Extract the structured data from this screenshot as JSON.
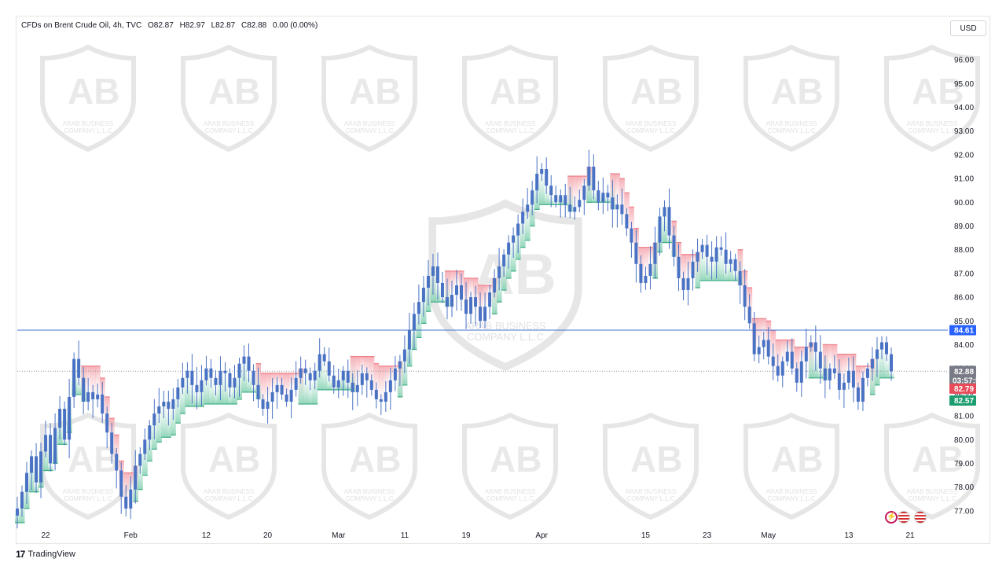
{
  "header": {
    "symbol": "CFDs on Brent Crude Oil, 4h, TVC",
    "open": "O82.87",
    "high": "H82.97",
    "low": "L82.87",
    "close": "C82.88",
    "change": "0.00 (0.00%)"
  },
  "currency_label": "USD",
  "footer": {
    "brand": "TradingView",
    "logo_glyph": "17"
  },
  "watermark": {
    "line1": "ARAB BUSINESS",
    "line2": "COMPANY L.L.C"
  },
  "colors": {
    "candle_up": "#4a72c4",
    "candle_down": "#4a72c4",
    "horizontal_line": "#3d6fd1",
    "stop_red": "#f0808a",
    "stop_green": "#3fae86",
    "last_price_bg": "#787b86",
    "tag_red": "#e84b5a",
    "tag_green": "#1e9e70",
    "tag_blue": "#2962ff"
  },
  "price_tags": {
    "line_level": "84.61",
    "last_price": "82.88",
    "countdown": "03:57:51",
    "upper_stop": "82.79",
    "lower_stop": "82.57"
  },
  "chart_data": {
    "type": "candlestick",
    "title": "CFDs on Brent Crude Oil, 4h, TVC",
    "ylim": [
      76.4,
      96.6
    ],
    "y_ticks": [
      "96.00",
      "95.00",
      "94.00",
      "93.00",
      "92.00",
      "91.00",
      "90.00",
      "89.00",
      "88.00",
      "87.00",
      "86.00",
      "85.00",
      "84.00",
      "83.00",
      "82.00",
      "81.00",
      "80.00",
      "79.00",
      "78.00",
      "77.00"
    ],
    "x_labels": [
      {
        "label": "22",
        "i": 6
      },
      {
        "label": "Feb",
        "i": 24
      },
      {
        "label": "12",
        "i": 40
      },
      {
        "label": "20",
        "i": 53
      },
      {
        "label": "Mar",
        "i": 68
      },
      {
        "label": "11",
        "i": 82
      },
      {
        "label": "19",
        "i": 95
      },
      {
        "label": "Apr",
        "i": 111
      },
      {
        "label": "15",
        "i": 133
      },
      {
        "label": "23",
        "i": 146
      },
      {
        "label": "May",
        "i": 159
      },
      {
        "label": "13",
        "i": 176
      },
      {
        "label": "21",
        "i": 189
      }
    ],
    "horizontal_line": 84.61,
    "last_price": 82.88,
    "close_path": [
      77.1,
      77.8,
      78.6,
      79.3,
      78.2,
      79.5,
      80.2,
      79.0,
      80.5,
      81.3,
      80.0,
      81.8,
      83.4,
      82.6,
      81.6,
      82.0,
      81.7,
      81.9,
      81.1,
      80.3,
      79.4,
      78.7,
      77.6,
      77.1,
      77.9,
      78.9,
      79.4,
      80.0,
      80.6,
      81.1,
      81.4,
      81.6,
      81.3,
      81.7,
      82.2,
      82.6,
      82.9,
      82.3,
      82.0,
      82.5,
      83.0,
      82.6,
      82.3,
      82.9,
      82.8,
      82.2,
      82.6,
      83.2,
      83.5,
      82.9,
      82.3,
      81.7,
      81.3,
      81.6,
      82.0,
      82.3,
      81.9,
      81.6,
      82.1,
      82.6,
      83.0,
      82.8,
      82.5,
      82.9,
      83.6,
      83.3,
      82.7,
      82.2,
      82.5,
      82.9,
      82.4,
      82.0,
      82.3,
      82.8,
      82.5,
      82.1,
      81.7,
      81.6,
      82.0,
      82.5,
      83.0,
      83.3,
      83.8,
      84.6,
      85.3,
      85.8,
      86.4,
      86.9,
      87.3,
      86.6,
      86.0,
      85.6,
      86.1,
      86.5,
      85.9,
      85.3,
      86.0,
      85.6,
      85.0,
      85.6,
      86.2,
      86.8,
      87.3,
      87.8,
      88.3,
      88.6,
      89.1,
      89.6,
      89.9,
      90.5,
      91.2,
      91.4,
      90.7,
      90.3,
      90.0,
      90.3,
      89.9,
      89.6,
      89.8,
      90.1,
      90.7,
      91.5,
      90.5,
      90.0,
      90.4,
      90.2,
      89.7,
      89.9,
      89.5,
      88.9,
      88.3,
      87.4,
      86.6,
      86.9,
      87.4,
      88.3,
      89.4,
      89.8,
      88.6,
      87.7,
      86.8,
      86.3,
      86.8,
      87.5,
      87.9,
      88.2,
      87.7,
      87.5,
      88.1,
      88.0,
      87.4,
      87.6,
      87.1,
      86.5,
      85.6,
      84.9,
      83.6,
      83.9,
      84.2,
      83.5,
      83.1,
      82.7,
      83.3,
      83.7,
      83.0,
      82.4,
      83.3,
      83.9,
      84.1,
      83.7,
      83.0,
      82.5,
      83.0,
      82.8,
      82.1,
      82.4,
      82.9,
      82.2,
      81.6,
      82.6,
      83.0,
      83.4,
      83.8,
      84.1,
      83.6,
      82.88
    ]
  }
}
